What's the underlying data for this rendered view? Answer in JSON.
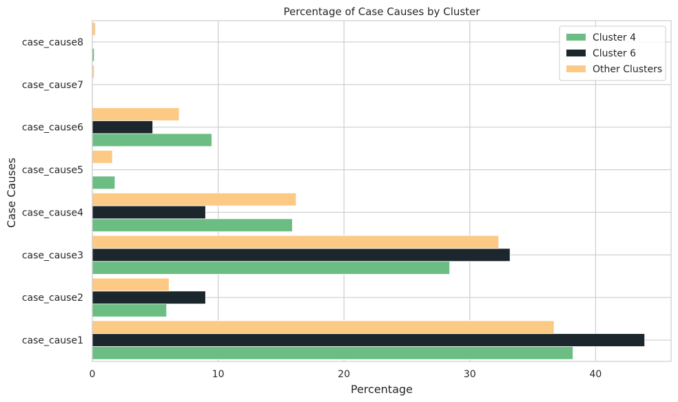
{
  "chart_data": {
    "type": "bar",
    "orientation": "horizontal",
    "title": "Percentage of Case Causes by Cluster",
    "xlabel": "Percentage",
    "ylabel": "Case Causes",
    "xlim": [
      0,
      46
    ],
    "xticks": [
      0,
      10,
      20,
      30,
      40
    ],
    "grid": true,
    "legend_position": "top-right",
    "categories": [
      "case_cause1",
      "case_cause2",
      "case_cause3",
      "case_cause4",
      "case_cause5",
      "case_cause6",
      "case_cause7",
      "case_cause8"
    ],
    "series": [
      {
        "name": "Cluster 4",
        "color": "#6bbd83",
        "values": [
          38.2,
          5.9,
          28.4,
          15.9,
          1.8,
          9.5,
          0.0,
          0.15
        ]
      },
      {
        "name": "Cluster 6",
        "color": "#1b272c",
        "values": [
          43.9,
          9.0,
          33.2,
          9.0,
          0.0,
          4.8,
          0.0,
          0.0
        ]
      },
      {
        "name": "Other Clusters",
        "color": "#fdca86",
        "values": [
          36.7,
          6.1,
          32.3,
          16.2,
          1.6,
          6.9,
          0.15,
          0.25
        ]
      }
    ]
  }
}
